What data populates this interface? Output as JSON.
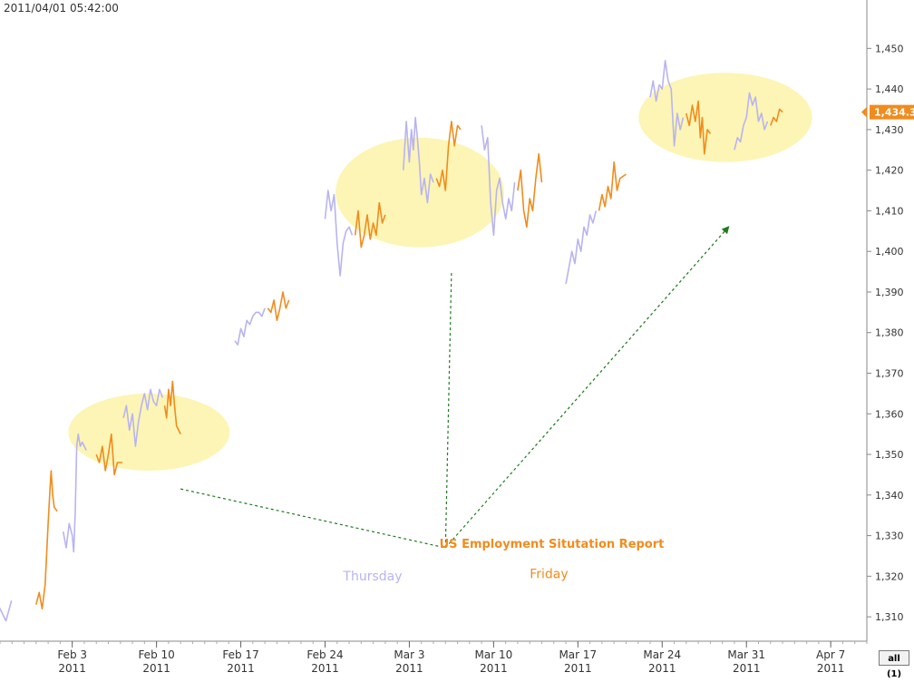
{
  "timestamp": "2011/04/01 05:42:00",
  "range_button_label": "all (1)",
  "colors": {
    "thursday": "#b8b4f0",
    "friday": "#f08c1e",
    "highlight": "#fbf3a8",
    "trend_arrow": "#1f7a1f",
    "last_price_marker": "#f08c1e",
    "annotation_text": "#f08c1e"
  },
  "chart_data": {
    "type": "line",
    "x_tick_labels": [
      {
        "date": "2011-02-03",
        "label": "Feb 3",
        "year": "2011"
      },
      {
        "date": "2011-02-10",
        "label": "Feb 10",
        "year": "2011"
      },
      {
        "date": "2011-02-17",
        "label": "Feb 17",
        "year": "2011"
      },
      {
        "date": "2011-02-24",
        "label": "Feb 24",
        "year": "2011"
      },
      {
        "date": "2011-03-03",
        "label": "Mar 3",
        "year": "2011"
      },
      {
        "date": "2011-03-10",
        "label": "Mar 10",
        "year": "2011"
      },
      {
        "date": "2011-03-17",
        "label": "Mar 17",
        "year": "2011"
      },
      {
        "date": "2011-03-24",
        "label": "Mar 24",
        "year": "2011"
      },
      {
        "date": "2011-03-31",
        "label": "Mar 31",
        "year": "2011"
      },
      {
        "date": "2011-04-07",
        "label": "Apr 7",
        "year": "2011"
      }
    ],
    "xlim": [
      "2011-01-28",
      "2011-04-10"
    ],
    "y_ticks": [
      1310,
      1320,
      1330,
      1340,
      1350,
      1360,
      1370,
      1380,
      1390,
      1400,
      1410,
      1420,
      1430,
      1440,
      1450
    ],
    "y_tick_labels": [
      "1,310",
      "1,320",
      "1,330",
      "1,340",
      "1,350",
      "1,360",
      "1,370",
      "1,380",
      "1,390",
      "1,400",
      "1,410",
      "1,420",
      "1,430",
      "1,440",
      "1,450"
    ],
    "ylim": [
      1304,
      1457
    ],
    "y_axis_side": "right",
    "grid": false,
    "last_price": 1434.3,
    "last_price_label": "1,434.3",
    "series": [
      {
        "day": "thursday",
        "x": [
          "2011-01-27",
          "2011-01-27T12:00",
          "2011-01-28",
          "2011-01-28T12:00",
          "2011-01-28T23:00"
        ],
        "values": [
          1323,
          1315,
          1312,
          1309,
          1314
        ]
      },
      {
        "day": "friday",
        "x": [
          "2011-01-31",
          "2011-01-31T06:00",
          "2011-01-31T12:00",
          "2011-01-31T18:00",
          "2011-02-01",
          "2011-02-01T03:00",
          "2011-02-01T06:00",
          "2011-02-01T09:00",
          "2011-02-01T12:00",
          "2011-02-01T18:00"
        ],
        "values": [
          1313,
          1316,
          1312,
          1318,
          1333,
          1340,
          1346,
          1340,
          1337,
          1336
        ]
      },
      {
        "day": "thursday",
        "x": [
          "2011-02-02T06:00",
          "2011-02-02T12:00",
          "2011-02-02T18:00",
          "2011-02-03",
          "2011-02-03T03:00",
          "2011-02-03T06:00",
          "2011-02-03T09:00",
          "2011-02-03T12:00",
          "2011-02-03T16:00",
          "2011-02-03T20:00",
          "2011-02-04T04:00"
        ],
        "values": [
          1331,
          1327,
          1333,
          1330,
          1326,
          1336,
          1352,
          1355,
          1352,
          1353,
          1351
        ]
      },
      {
        "day": "friday",
        "x": [
          "2011-02-05",
          "2011-02-05T06:00",
          "2011-02-05T12:00",
          "2011-02-05T18:00",
          "2011-02-06",
          "2011-02-06T06:00",
          "2011-02-06T12:00",
          "2011-02-06T18:00",
          "2011-02-07T04:00"
        ],
        "values": [
          1350,
          1348,
          1352,
          1346,
          1350,
          1355,
          1345,
          1348,
          1348
        ]
      },
      {
        "day": "thursday",
        "x": [
          "2011-02-07T06:00",
          "2011-02-07T12:00",
          "2011-02-07T18:00",
          "2011-02-08",
          "2011-02-08T06:00",
          "2011-02-08T12:00",
          "2011-02-08T18:00",
          "2011-02-09",
          "2011-02-09T06:00",
          "2011-02-09T12:00",
          "2011-02-09T18:00",
          "2011-02-10",
          "2011-02-10T06:00",
          "2011-02-10T12:00"
        ],
        "values": [
          1359,
          1362,
          1356,
          1360,
          1352,
          1358,
          1362,
          1365,
          1361,
          1366,
          1363,
          1362,
          1366,
          1364
        ]
      },
      {
        "day": "friday",
        "x": [
          "2011-02-10T16:00",
          "2011-02-10T20:00",
          "2011-02-11",
          "2011-02-11T04:00",
          "2011-02-11T08:00",
          "2011-02-11T12:00",
          "2011-02-11T16:00",
          "2011-02-11T20:00",
          "2011-02-12"
        ],
        "values": [
          1362,
          1359,
          1366,
          1362,
          1368,
          1362,
          1357,
          1356,
          1355
        ]
      },
      {
        "day": "thursday",
        "x": [
          "2011-02-16T12:00",
          "2011-02-16T18:00",
          "2011-02-17",
          "2011-02-17T06:00",
          "2011-02-17T12:00",
          "2011-02-17T18:00",
          "2011-02-18",
          "2011-02-18T06:00",
          "2011-02-18T12:00",
          "2011-02-18T18:00",
          "2011-02-19"
        ],
        "values": [
          1378,
          1377,
          1381,
          1379,
          1383,
          1382,
          1384,
          1385,
          1385,
          1384,
          1386
        ]
      },
      {
        "day": "friday",
        "x": [
          "2011-02-19T06:00",
          "2011-02-19T12:00",
          "2011-02-19T18:00",
          "2011-02-20",
          "2011-02-20T06:00",
          "2011-02-20T12:00",
          "2011-02-20T18:00",
          "2011-02-21"
        ],
        "values": [
          1386,
          1385,
          1388,
          1383,
          1386,
          1390,
          1386,
          1388
        ]
      },
      {
        "day": "thursday",
        "x": [
          "2011-02-24",
          "2011-02-24T06:00",
          "2011-02-24T12:00",
          "2011-02-24T18:00",
          "2011-02-25",
          "2011-02-25T06:00",
          "2011-02-25T12:00",
          "2011-02-25T18:00",
          "2011-02-26",
          "2011-02-26T06:00"
        ],
        "values": [
          1408,
          1415,
          1410,
          1414,
          1402,
          1394,
          1402,
          1405,
          1406,
          1404
        ]
      },
      {
        "day": "friday",
        "x": [
          "2011-02-26T12:00",
          "2011-02-26T18:00",
          "2011-02-27",
          "2011-02-27T06:00",
          "2011-02-27T12:00",
          "2011-02-27T18:00",
          "2011-02-28",
          "2011-02-28T06:00",
          "2011-02-28T12:00",
          "2011-02-28T18:00",
          "2011-03-01"
        ],
        "values": [
          1404,
          1410,
          1401,
          1404,
          1409,
          1403,
          1407,
          1404,
          1412,
          1407,
          1409
        ]
      },
      {
        "day": "thursday",
        "x": [
          "2011-03-02T12:00",
          "2011-03-02T18:00",
          "2011-03-03",
          "2011-03-03T04:00",
          "2011-03-03T08:00",
          "2011-03-03T12:00",
          "2011-03-03T16:00",
          "2011-03-03T20:00",
          "2011-03-04",
          "2011-03-04T06:00",
          "2011-03-04T12:00",
          "2011-03-04T18:00",
          "2011-03-05"
        ],
        "values": [
          1420,
          1432,
          1422,
          1430,
          1425,
          1433,
          1428,
          1422,
          1414,
          1418,
          1412,
          1419,
          1417
        ]
      },
      {
        "day": "friday",
        "x": [
          "2011-03-05T06:00",
          "2011-03-05T12:00",
          "2011-03-05T18:00",
          "2011-03-06",
          "2011-03-06T06:00",
          "2011-03-06T12:00",
          "2011-03-06T18:00",
          "2011-03-07",
          "2011-03-07T06:00"
        ],
        "values": [
          1418,
          1416,
          1420,
          1415,
          1426,
          1432,
          1426,
          1431,
          1430
        ]
      },
      {
        "day": "thursday",
        "x": [
          "2011-03-09",
          "2011-03-09T06:00",
          "2011-03-09T12:00",
          "2011-03-09T18:00",
          "2011-03-10",
          "2011-03-10T06:00",
          "2011-03-10T12:00",
          "2011-03-10T18:00",
          "2011-03-11",
          "2011-03-11T06:00",
          "2011-03-11T12:00",
          "2011-03-11T18:00"
        ],
        "values": [
          1431,
          1425,
          1428,
          1412,
          1404,
          1415,
          1418,
          1412,
          1408,
          1413,
          1410,
          1417
        ]
      },
      {
        "day": "friday",
        "x": [
          "2011-03-12",
          "2011-03-12T06:00",
          "2011-03-12T12:00",
          "2011-03-12T18:00",
          "2011-03-13",
          "2011-03-13T06:00",
          "2011-03-13T12:00",
          "2011-03-13T18:00",
          "2011-03-14"
        ],
        "values": [
          1415,
          1420,
          1410,
          1406,
          1413,
          1410,
          1418,
          1424,
          1417
        ]
      },
      {
        "day": "thursday",
        "x": [
          "2011-03-16",
          "2011-03-16T06:00",
          "2011-03-16T12:00",
          "2011-03-16T18:00",
          "2011-03-17",
          "2011-03-17T06:00",
          "2011-03-17T12:00",
          "2011-03-17T18:00",
          "2011-03-18",
          "2011-03-18T06:00",
          "2011-03-18T12:00"
        ],
        "values": [
          1392,
          1396,
          1400,
          1397,
          1403,
          1400,
          1406,
          1404,
          1409,
          1407,
          1410
        ]
      },
      {
        "day": "friday",
        "x": [
          "2011-03-18T18:00",
          "2011-03-19",
          "2011-03-19T06:00",
          "2011-03-19T12:00",
          "2011-03-19T18:00",
          "2011-03-20",
          "2011-03-20T06:00",
          "2011-03-20T12:00",
          "2011-03-21"
        ],
        "values": [
          1410,
          1414,
          1411,
          1416,
          1413,
          1422,
          1415,
          1418,
          1419
        ]
      },
      {
        "day": "thursday",
        "x": [
          "2011-03-23",
          "2011-03-23T06:00",
          "2011-03-23T12:00",
          "2011-03-23T18:00",
          "2011-03-24",
          "2011-03-24T06:00",
          "2011-03-24T12:00",
          "2011-03-24T18:00",
          "2011-03-25",
          "2011-03-25T06:00",
          "2011-03-25T12:00",
          "2011-03-25T18:00"
        ],
        "values": [
          1438,
          1442,
          1437,
          1441,
          1440,
          1447,
          1442,
          1440,
          1426,
          1434,
          1430,
          1433
        ]
      },
      {
        "day": "friday",
        "x": [
          "2011-03-26",
          "2011-03-26T06:00",
          "2011-03-26T12:00",
          "2011-03-26T18:00",
          "2011-03-27",
          "2011-03-27T04:00",
          "2011-03-27T08:00",
          "2011-03-27T12:00",
          "2011-03-27T18:00",
          "2011-03-28"
        ],
        "values": [
          1434,
          1431,
          1436,
          1432,
          1437,
          1428,
          1433,
          1424,
          1430,
          1429
        ]
      },
      {
        "day": "thursday",
        "x": [
          "2011-03-30",
          "2011-03-30T06:00",
          "2011-03-30T12:00",
          "2011-03-30T18:00",
          "2011-03-31",
          "2011-03-31T06:00",
          "2011-03-31T12:00",
          "2011-03-31T18:00",
          "2011-04-01",
          "2011-04-01T06:00",
          "2011-04-01T12:00",
          "2011-04-01T18:00"
        ],
        "values": [
          1425,
          1428,
          1427,
          1431,
          1433,
          1439,
          1436,
          1438,
          1432,
          1434,
          1430,
          1432
        ]
      },
      {
        "day": "friday",
        "x": [
          "2011-04-02",
          "2011-04-02T06:00",
          "2011-04-02T12:00",
          "2011-04-02T18:00",
          "2011-04-03"
        ],
        "values": [
          1431,
          1433,
          1432,
          1435,
          1434.3
        ]
      }
    ],
    "annotations": [
      {
        "text": "US Employment Situtation Report",
        "x": "2011-03-05T12:00",
        "y": 1327,
        "anchor": "start",
        "bold": true,
        "color": "#f08c1e"
      },
      {
        "text": "Thursday",
        "x": "2011-02-25T12:00",
        "y": 1319,
        "anchor": "start",
        "bold": false,
        "color": "#b8b4f0"
      },
      {
        "text": "Friday",
        "x": "2011-03-13",
        "y": 1319.5,
        "anchor": "start",
        "bold": false,
        "color": "#f08c1e"
      }
    ],
    "highlight_ellipses": [
      {
        "cx": "2011-02-09T09:00",
        "cy": 1355.5,
        "rx_days": 6.7,
        "ry": 9.5
      },
      {
        "cx": "2011-03-03T21:00",
        "cy": 1414.5,
        "rx_days": 7.0,
        "ry": 13.5
      },
      {
        "cx": "2011-03-29T06:00",
        "cy": 1433,
        "rx_days": 7.2,
        "ry": 11
      }
    ],
    "trend_lines": [
      {
        "from": [
          "2011-02-12",
          1341.5
        ],
        "to": [
          "2011-03-06",
          1327
        ],
        "arrow": false
      },
      {
        "from": [
          "2011-03-06",
          1327
        ],
        "to": [
          "2011-03-06T12:00",
          1395
        ],
        "arrow": false
      },
      {
        "from": [
          "2011-03-06",
          1327
        ],
        "to": [
          "2011-03-29T12:00",
          1406
        ],
        "arrow": true
      }
    ]
  }
}
